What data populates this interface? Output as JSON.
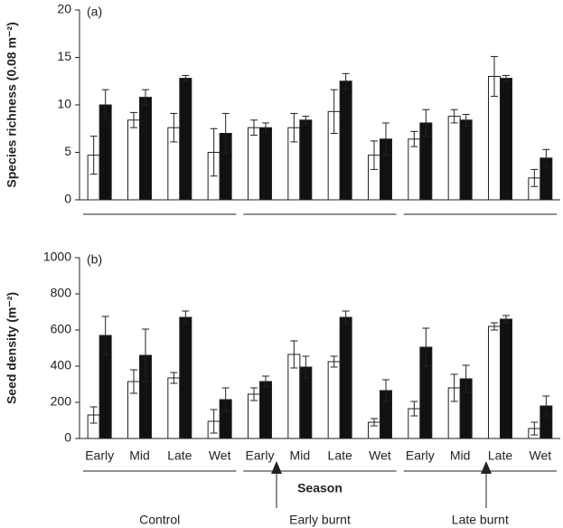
{
  "chart_data": [
    {
      "type": "bar",
      "panel_label": "(a)",
      "ylabel": "Species richness (0.08 m⁻²)",
      "categories": [
        null,
        null,
        null,
        null,
        null,
        null,
        null,
        null,
        null,
        null,
        null,
        null
      ],
      "series": [
        {
          "color": "#ffffff",
          "values": [
            4.7,
            8.4,
            7.6,
            5.0,
            7.6,
            7.6,
            9.3,
            4.7,
            6.4,
            8.8,
            13.0,
            2.3
          ],
          "errors": [
            2.0,
            0.8,
            1.5,
            2.5,
            0.8,
            1.5,
            2.3,
            1.5,
            0.8,
            0.7,
            2.1,
            0.9
          ]
        },
        {
          "color": "#111111",
          "values": [
            10.0,
            10.8,
            12.8,
            7.0,
            7.6,
            8.4,
            12.5,
            6.4,
            8.1,
            8.4,
            12.8,
            4.4
          ],
          "errors": [
            1.6,
            0.8,
            0.3,
            2.1,
            0.5,
            0.4,
            0.8,
            1.7,
            1.4,
            0.6,
            0.3,
            0.9
          ]
        }
      ],
      "ylim": [
        0,
        20
      ],
      "yticks": [
        0,
        5,
        10,
        15,
        20
      ]
    },
    {
      "type": "bar",
      "panel_label": "(b)",
      "ylabel": "Seed density (m⁻²)",
      "xlabel": "Season",
      "categories": [
        "Early",
        "Mid",
        "Late",
        "Wet",
        "Early",
        "Mid",
        "Late",
        "Wet",
        "Early",
        "Mid",
        "Late",
        "Wet"
      ],
      "groups": [
        "Control",
        "Early burnt",
        "Late burnt"
      ],
      "series": [
        {
          "color": "#ffffff",
          "values": [
            130,
            315,
            335,
            95,
            245,
            465,
            425,
            90,
            165,
            280,
            620,
            55
          ],
          "errors": [
            45,
            65,
            30,
            65,
            35,
            75,
            30,
            20,
            40,
            75,
            20,
            35
          ]
        },
        {
          "color": "#111111",
          "values": [
            570,
            460,
            670,
            215,
            315,
            395,
            670,
            265,
            505,
            330,
            660,
            180
          ],
          "errors": [
            105,
            145,
            35,
            65,
            30,
            60,
            35,
            60,
            105,
            75,
            20,
            55
          ]
        }
      ],
      "ylim": [
        0,
        1000
      ],
      "yticks": [
        0,
        200,
        400,
        600,
        800,
        1000
      ]
    }
  ]
}
